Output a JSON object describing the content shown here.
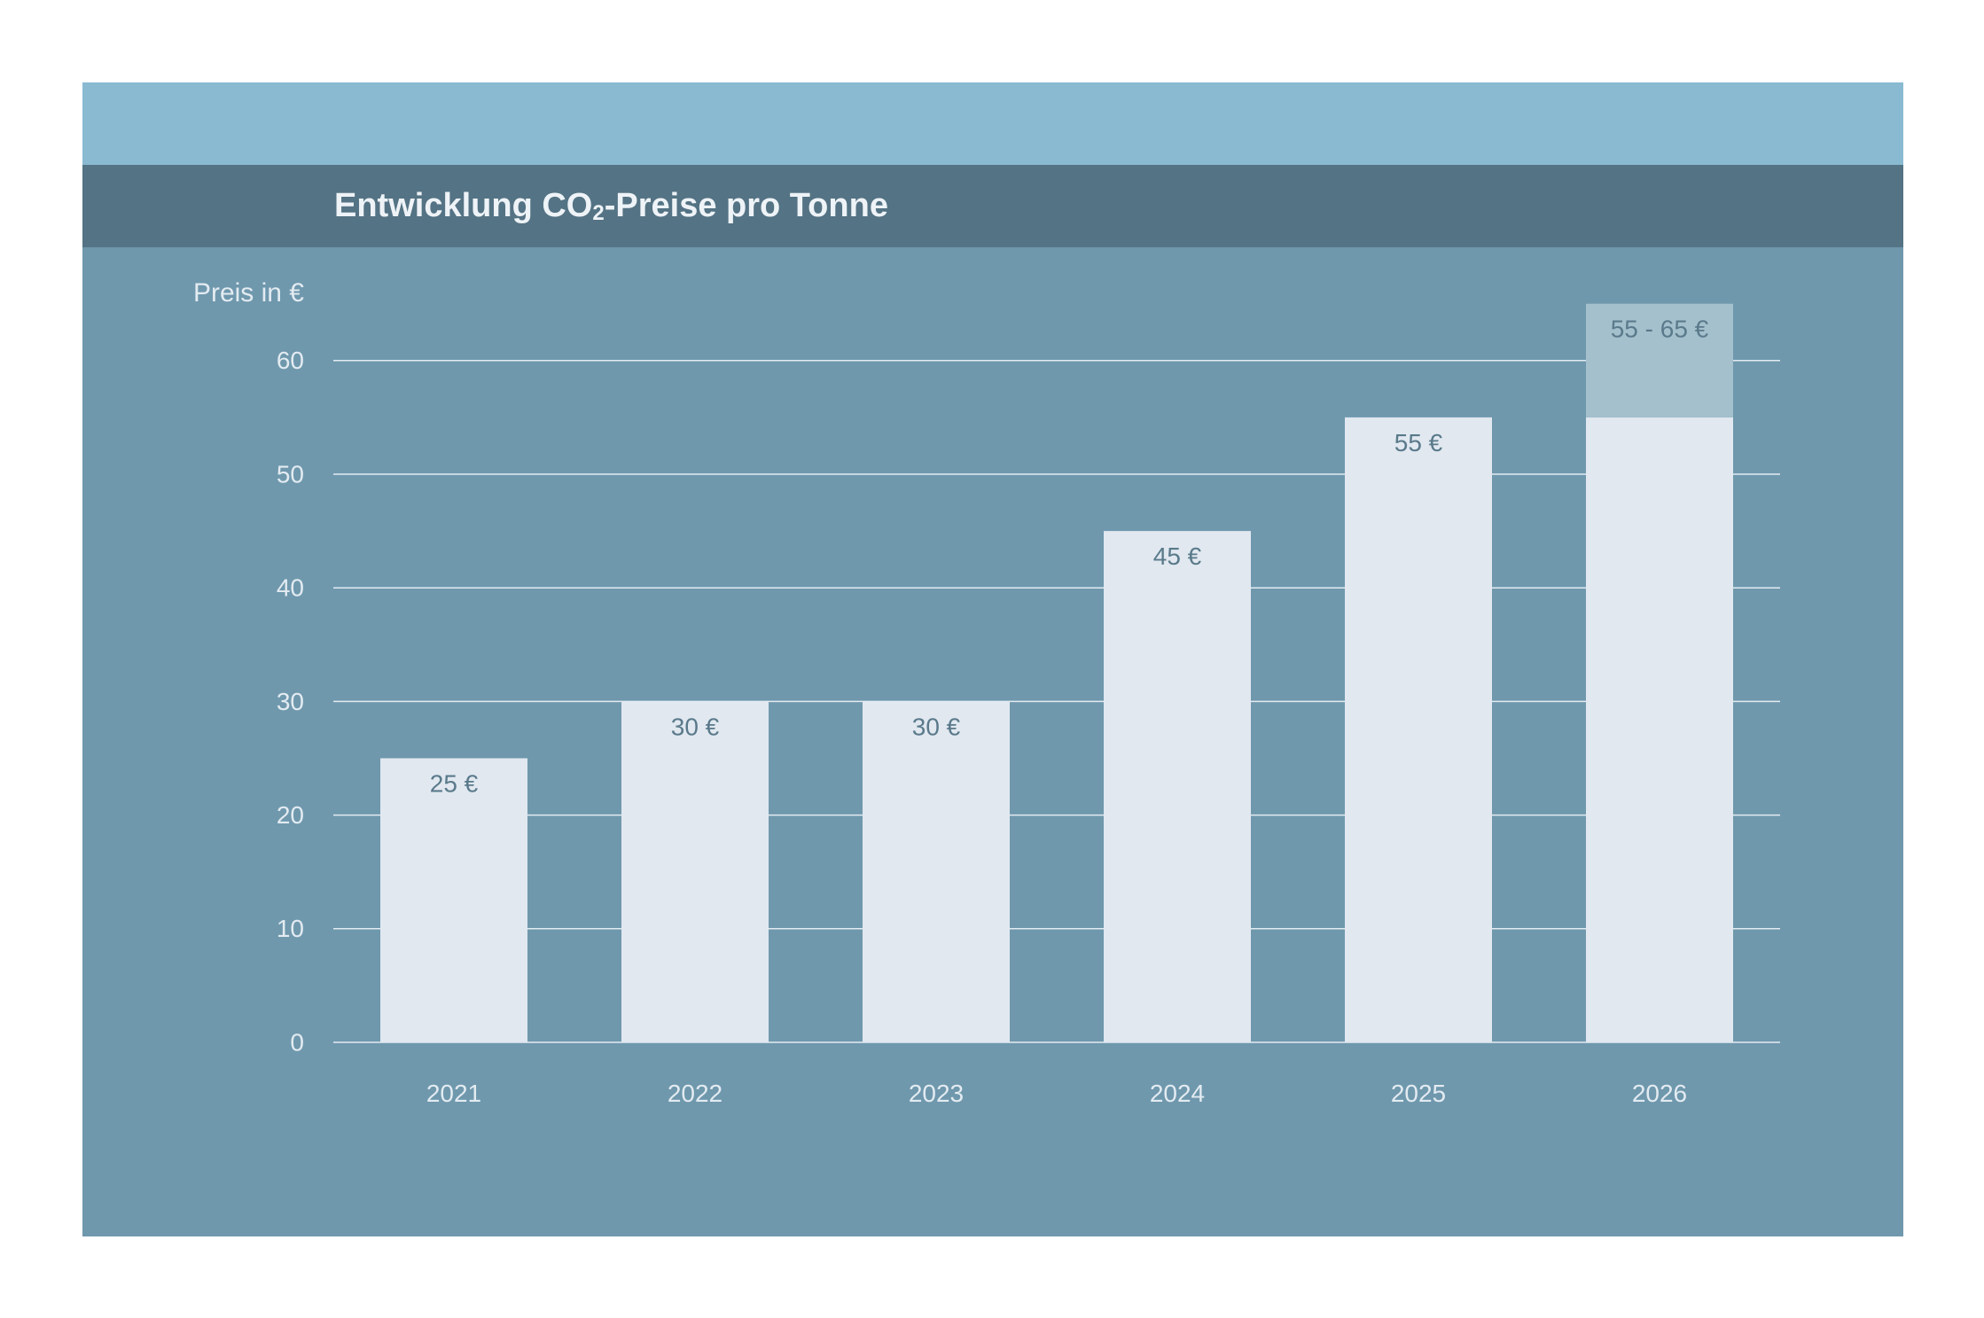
{
  "chart_data": {
    "type": "bar",
    "title_main": "Entwicklung CO",
    "title_sub": "2",
    "title_rest": "-Preise pro Tonne",
    "ylabel": "Preis in €",
    "xlabel": "",
    "ylim": [
      0,
      60
    ],
    "yticks": [
      "0",
      "10",
      "20",
      "30",
      "40",
      "50",
      "60"
    ],
    "categories": [
      "2021",
      "2022",
      "2023",
      "2024",
      "2025",
      "2026"
    ],
    "values": [
      25,
      30,
      30,
      45,
      55,
      55
    ],
    "range_upper": [
      null,
      null,
      null,
      null,
      null,
      65
    ],
    "labels": [
      "25 €",
      "30 €",
      "30 €",
      "45 €",
      "55 €",
      "55 - 65 €"
    ],
    "grid": true,
    "colors": {
      "bar": "#e1e8f0",
      "range": "#a4c0cd",
      "background": "#6f98ad",
      "grid": "#e3ebf1",
      "title_bar": "#547384",
      "top_band": "#8abad2"
    }
  }
}
